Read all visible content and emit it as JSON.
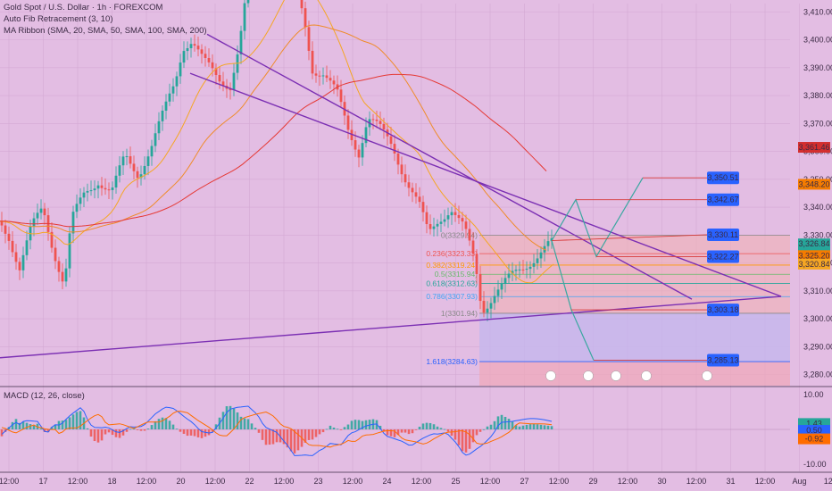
{
  "legend": {
    "symbol": "Gold Spot / U.S. Dollar · 1h · FOREXCOM",
    "indicator_fib": "Auto Fib Retracement (3, 10)",
    "indicator_ma": "MA Ribbon (SMA, 20, SMA, 50, SMA, 100, SMA, 200)",
    "macd": "MACD (12, 26, close)"
  },
  "colors": {
    "background": "#e3bde3",
    "up": "#26a69a",
    "down": "#ef5350",
    "trendline": "#7b2fb3",
    "projection": "#3aa7a0",
    "projection_down": "#d83a3a",
    "target_badge": "#2962ff",
    "fib_zone": "#f3b0b0",
    "support_zone": "#c4b6ec"
  },
  "chart_data": [
    {
      "type": "candlestick",
      "title": "Gold Spot / U.S. Dollar · 1h · FOREXCOM",
      "x_tick_labels": [
        "12:00",
        "17",
        "12:00",
        "18",
        "12:00",
        "20",
        "12:00",
        "22",
        "12:00",
        "23",
        "12:00",
        "24",
        "12:00",
        "25",
        "12:00",
        "27",
        "12:00",
        "29",
        "12:00",
        "30",
        "12:00",
        "31",
        "12:00",
        "Aug",
        "12:00",
        "3",
        "12:00",
        "5"
      ],
      "y_tick_labels": [
        "3,280.00",
        "3,290.00",
        "3,300.00",
        "3,310.00",
        "3,320.00",
        "3,330.00",
        "3,340.00",
        "3,350.00",
        "3,360.00",
        "3,370.00",
        "3,380.00",
        "3,390.00",
        "3,400.00",
        "3,410.00"
      ],
      "ylim": [
        3276,
        3413
      ],
      "price_markers": [
        {
          "value": "3,361.46",
          "color": "#d32f2f"
        },
        {
          "value": "3,348.20",
          "color": "#f57c00"
        },
        {
          "value": "3,326.84",
          "color": "#26a69a"
        },
        {
          "value": "25:03",
          "color": "#26a69a"
        },
        {
          "value": "3,325.20",
          "color": "#f57c00"
        },
        {
          "value": "3,320.84",
          "color": "#f5a623"
        }
      ],
      "targets": [
        "3,350.51",
        "3,342.67",
        "3,330.11",
        "3,322.27",
        "3,303.18",
        "3,285.13"
      ],
      "fib_levels": [
        {
          "label": "0(3329.94)",
          "value": 3329.94
        },
        {
          "label": "0.236(3323.33)",
          "value": 3323.33
        },
        {
          "label": "0.382(3319.24)",
          "value": 3319.24
        },
        {
          "label": "0.5(3315.94)",
          "value": 3315.94
        },
        {
          "label": "0.618(3312.63)",
          "value": 3312.63
        },
        {
          "label": "0.786(3307.93)",
          "value": 3307.93
        },
        {
          "label": "1(3301.94)",
          "value": 3301.94
        },
        {
          "label": "1.618(3284.63)",
          "value": 3284.63
        }
      ]
    },
    {
      "type": "bar",
      "title": "MACD (12, 26, close)",
      "y_tick_labels": [
        "10.00",
        "0.00",
        "-10.00"
      ],
      "ylim": [
        -12,
        12
      ],
      "markers": [
        "1.43",
        "0.50",
        "-0.92"
      ]
    }
  ]
}
